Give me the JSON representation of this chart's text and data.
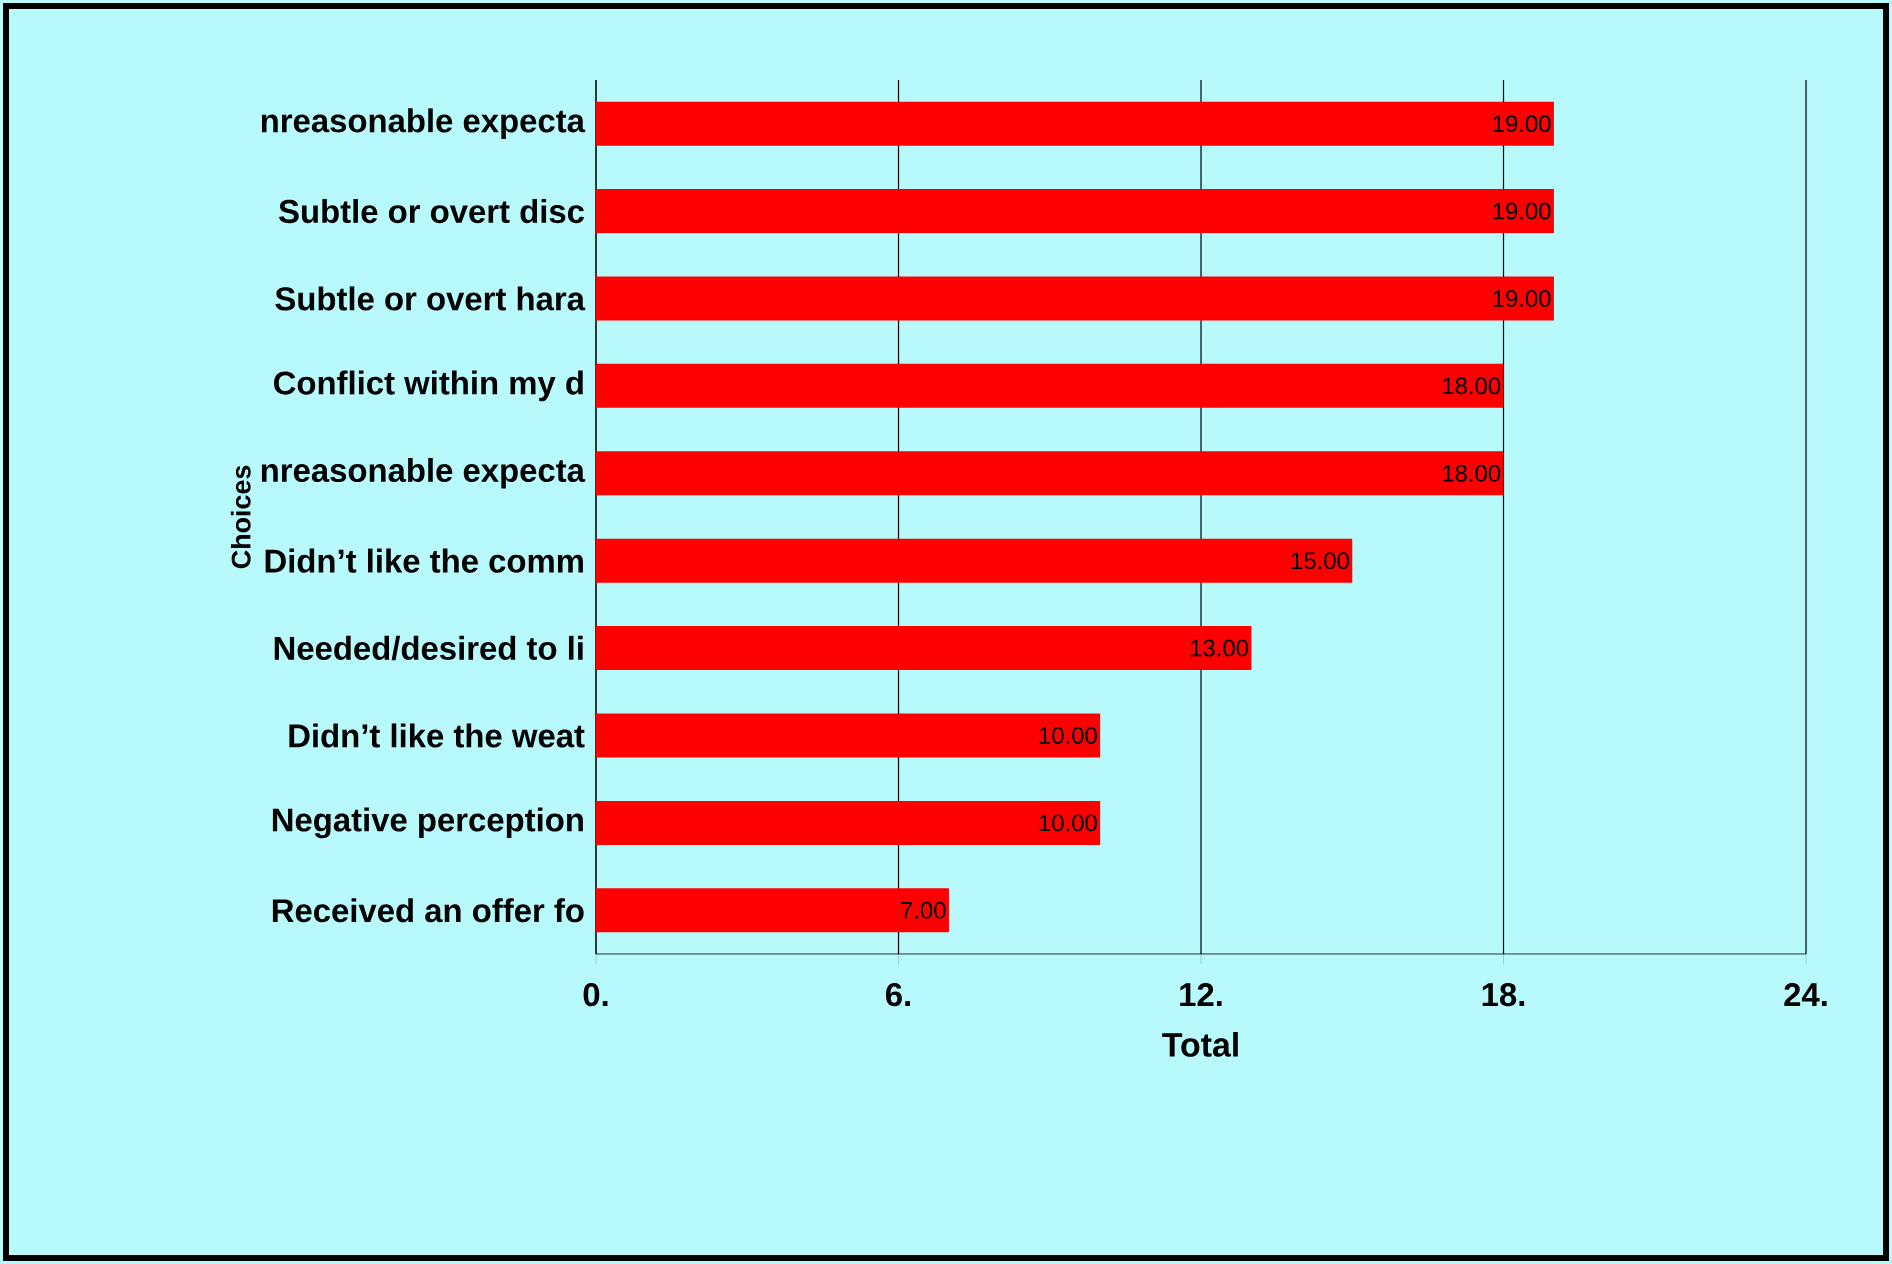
{
  "chart_data": {
    "type": "bar",
    "orientation": "horizontal",
    "xlabel": "Total",
    "ylabel": "Choices",
    "categories": [
      "nreasonable expecta",
      "Subtle or overt disc",
      "Subtle or overt hara",
      "Conflict within my d",
      "nreasonable expecta",
      "Didn’t like the comm",
      "Needed/desired to li",
      "Didn’t like the weat",
      "Negative perception",
      "Received an offer fo"
    ],
    "values": [
      19,
      19,
      19,
      18,
      18,
      15,
      13,
      10,
      10,
      7
    ],
    "value_labels": [
      "19.00",
      "19.00",
      "19.00",
      "18.00",
      "18.00",
      "15.00",
      "13.00",
      "10.00",
      "10.00",
      "7.00"
    ],
    "color": "#ff0000",
    "xlim": [
      0,
      24
    ],
    "xticks": [
      {
        "value": 0,
        "label": "0."
      },
      {
        "value": 6,
        "label": "6."
      },
      {
        "value": 12,
        "label": "12."
      },
      {
        "value": 18,
        "label": "18."
      },
      {
        "value": 24,
        "label": "24."
      }
    ],
    "grid": "x"
  }
}
